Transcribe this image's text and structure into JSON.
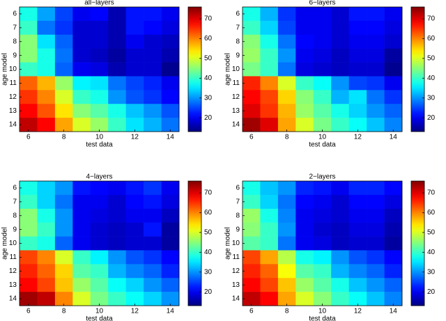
{
  "chart_data": [
    {
      "type": "heatmap",
      "title": "all−layers",
      "x_label": "test data",
      "y_label": "age model",
      "x": [
        6,
        7,
        8,
        9,
        10,
        11,
        12,
        13,
        14
      ],
      "y": [
        6,
        7,
        8,
        9,
        10,
        11,
        12,
        13,
        14
      ],
      "xlim": [
        5.5,
        14.5
      ],
      "ylim": [
        5.5,
        14.5
      ],
      "xticks": [
        6,
        8,
        10,
        12,
        14
      ],
      "yticks": [
        6,
        7,
        8,
        9,
        10,
        11,
        12,
        13,
        14
      ],
      "colormap": "jet",
      "clim": [
        13,
        76
      ],
      "cticks": [
        20,
        30,
        40,
        50,
        60,
        70
      ],
      "z": [
        [
          38,
          31,
          25,
          20,
          21,
          16,
          22,
          22,
          20
        ],
        [
          40,
          28,
          24,
          18,
          18,
          16,
          22,
          21,
          19
        ],
        [
          45,
          35,
          27,
          18,
          18,
          16,
          20,
          18,
          17
        ],
        [
          45,
          38,
          28,
          18,
          17,
          15,
          18,
          18,
          16
        ],
        [
          40,
          38,
          27,
          20,
          19,
          16,
          18,
          18,
          14
        ],
        [
          62,
          57,
          46,
          36,
          35,
          28,
          25,
          23,
          20
        ],
        [
          65,
          60,
          50,
          40,
          38,
          30,
          26,
          24,
          21
        ],
        [
          68,
          63,
          54,
          45,
          42,
          38,
          33,
          30,
          26
        ],
        [
          72,
          68,
          58,
          50,
          46,
          40,
          35,
          32,
          28
        ]
      ]
    },
    {
      "type": "heatmap",
      "title": "6−layers",
      "x_label": "test data",
      "y_label": "age model",
      "x": [
        6,
        7,
        8,
        9,
        10,
        11,
        12,
        13,
        14
      ],
      "y": [
        6,
        7,
        8,
        9,
        10,
        11,
        12,
        13,
        14
      ],
      "xlim": [
        5.5,
        14.5
      ],
      "ylim": [
        5.5,
        14.5
      ],
      "xticks": [
        6,
        8,
        10,
        12,
        14
      ],
      "yticks": [
        6,
        7,
        8,
        9,
        10,
        11,
        12,
        13,
        14
      ],
      "colormap": "jet",
      "clim": [
        13,
        76
      ],
      "cticks": [
        20,
        30,
        40,
        50,
        60,
        70
      ],
      "z": [
        [
          38,
          32,
          24,
          20,
          20,
          18,
          22,
          22,
          20
        ],
        [
          40,
          34,
          25,
          20,
          20,
          18,
          21,
          21,
          19
        ],
        [
          45,
          38,
          28,
          21,
          20,
          18,
          20,
          20,
          18
        ],
        [
          46,
          40,
          30,
          20,
          19,
          17,
          19,
          19,
          15
        ],
        [
          44,
          40,
          28,
          19,
          18,
          17,
          18,
          18,
          14
        ],
        [
          66,
          60,
          50,
          40,
          37,
          30,
          25,
          24,
          20
        ],
        [
          68,
          64,
          55,
          45,
          40,
          32,
          35,
          28,
          24
        ],
        [
          70,
          65,
          57,
          46,
          42,
          38,
          34,
          30,
          27
        ],
        [
          74,
          70,
          58,
          50,
          44,
          40,
          37,
          33,
          29
        ]
      ]
    },
    {
      "type": "heatmap",
      "title": "4−layers",
      "x_label": "test data",
      "y_label": "age model",
      "x": [
        6,
        7,
        8,
        9,
        10,
        11,
        12,
        13,
        14
      ],
      "y": [
        6,
        7,
        8,
        9,
        10,
        11,
        12,
        13,
        14
      ],
      "xlim": [
        5.5,
        14.5
      ],
      "ylim": [
        5.5,
        14.5
      ],
      "xticks": [
        6,
        8,
        10,
        12,
        14
      ],
      "yticks": [
        6,
        7,
        8,
        9,
        10,
        11,
        12,
        13,
        14
      ],
      "colormap": "jet",
      "clim": [
        13,
        76
      ],
      "cticks": [
        20,
        30,
        40,
        50,
        60,
        70
      ],
      "z": [
        [
          38,
          34,
          30,
          22,
          21,
          20,
          22,
          24,
          20
        ],
        [
          40,
          34,
          28,
          20,
          20,
          18,
          21,
          22,
          19
        ],
        [
          45,
          38,
          30,
          20,
          19,
          18,
          20,
          20,
          17
        ],
        [
          45,
          40,
          30,
          20,
          18,
          17,
          18,
          22,
          15
        ],
        [
          40,
          38,
          27,
          20,
          18,
          17,
          18,
          18,
          15
        ],
        [
          64,
          60,
          50,
          40,
          36,
          30,
          26,
          24,
          21
        ],
        [
          66,
          62,
          55,
          42,
          40,
          32,
          29,
          27,
          23
        ],
        [
          68,
          64,
          56,
          46,
          42,
          37,
          34,
          30,
          27
        ],
        [
          74,
          72,
          60,
          50,
          44,
          40,
          37,
          34,
          30
        ]
      ]
    },
    {
      "type": "heatmap",
      "title": "2−layers",
      "x_label": "test data",
      "y_label": "age model",
      "x": [
        6,
        7,
        8,
        9,
        10,
        11,
        12,
        13,
        14
      ],
      "y": [
        6,
        7,
        8,
        9,
        10,
        11,
        12,
        13,
        14
      ],
      "xlim": [
        5.5,
        14.5
      ],
      "ylim": [
        5.5,
        14.5
      ],
      "xticks": [
        6,
        8,
        10,
        12,
        14
      ],
      "yticks": [
        6,
        7,
        8,
        9,
        10,
        11,
        12,
        13,
        14
      ],
      "colormap": "jet",
      "clim": [
        13,
        76
      ],
      "cticks": [
        20,
        30,
        40,
        50,
        60,
        70
      ],
      "z": [
        [
          38,
          33,
          30,
          23,
          22,
          20,
          23,
          23,
          21
        ],
        [
          40,
          34,
          28,
          21,
          20,
          18,
          21,
          21,
          19
        ],
        [
          46,
          38,
          29,
          20,
          19,
          18,
          20,
          20,
          17
        ],
        [
          45,
          40,
          30,
          20,
          18,
          17,
          19,
          19,
          16
        ],
        [
          42,
          40,
          28,
          20,
          19,
          17,
          18,
          18,
          15
        ],
        [
          64,
          58,
          48,
          38,
          36,
          30,
          26,
          24,
          21
        ],
        [
          66,
          62,
          52,
          42,
          40,
          32,
          29,
          27,
          23
        ],
        [
          68,
          64,
          56,
          46,
          42,
          38,
          33,
          30,
          27
        ],
        [
          72,
          68,
          58,
          50,
          45,
          40,
          37,
          33,
          29
        ]
      ]
    }
  ]
}
